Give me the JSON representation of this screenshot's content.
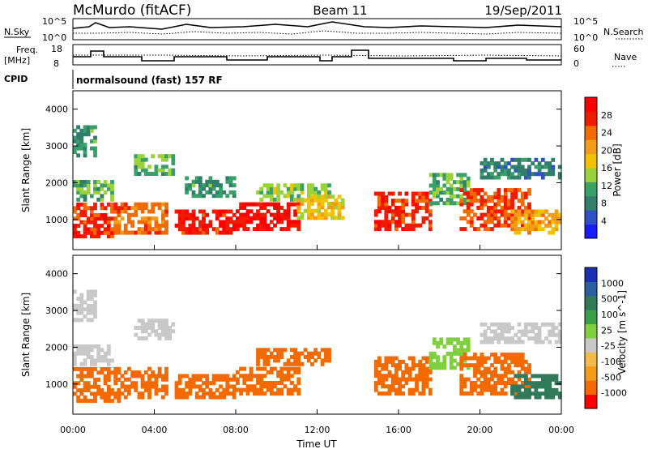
{
  "header": {
    "station": "McMurdo (fitACF)",
    "beam": "Beam 11",
    "date": "19/Sep/2011"
  },
  "top_panels": {
    "nsky_label": "N.Sky",
    "nsky_ticks": [
      "10^5",
      "10^0"
    ],
    "nsearch_label": "N.Search",
    "nsearch_ticks": [
      "10^5",
      "10^0"
    ],
    "freq_label": "Freq.",
    "freq_unit": "[MHz]",
    "freq_ticks": [
      "18",
      "8"
    ],
    "nave_label": "Nave",
    "nave_ticks": [
      "60",
      "0"
    ],
    "cpid_label": "CPID",
    "cpid_text": "normalsound (fast) 157 RF"
  },
  "colors": {
    "power_scale": [
      "#1a1aff",
      "#3050c8",
      "#2f7f6a",
      "#3aa06a",
      "#9ad23a",
      "#f2c200",
      "#f39c1a",
      "#f26a00",
      "#ef1c00",
      "#ff0000"
    ],
    "velocity_scale": [
      "#1a2fb4",
      "#2a5fa0",
      "#307a5a",
      "#3aa04a",
      "#7fcf3f",
      "#c8c8c8",
      "#f5b84a",
      "#f39c1a",
      "#f26a00",
      "#ff0000"
    ]
  },
  "chart_data": [
    {
      "type": "heatmap",
      "name": "power",
      "ylabel": "Slant Range [km]",
      "yticks": [
        "1000",
        "2000",
        "3000",
        "4000"
      ],
      "ylim": [
        180,
        4500
      ],
      "xlim": [
        "00:00",
        "24:00"
      ],
      "colorbar_label": "Power [dB]",
      "colorbar_ticks": [
        "4",
        "8",
        "12",
        "16",
        "20",
        "24",
        "28"
      ],
      "colorbar_range": [
        0,
        32
      ],
      "blobs": [
        {
          "t0": 0.0,
          "t1": 2.2,
          "r0": 500,
          "r1": 1400,
          "v": 27
        },
        {
          "t0": 0.0,
          "t1": 2.0,
          "r0": 1500,
          "r1": 2000,
          "v": 12
        },
        {
          "t0": 0.0,
          "t1": 1.0,
          "r0": 2700,
          "r1": 3500,
          "v": 10
        },
        {
          "t0": 2.0,
          "t1": 4.5,
          "r0": 600,
          "r1": 1400,
          "v": 24
        },
        {
          "t0": 3.0,
          "t1": 5.0,
          "r0": 2200,
          "r1": 2700,
          "v": 12
        },
        {
          "t0": 5.0,
          "t1": 8.0,
          "r0": 600,
          "r1": 1200,
          "v": 28
        },
        {
          "t0": 5.5,
          "t1": 8.0,
          "r0": 1600,
          "r1": 2100,
          "v": 10
        },
        {
          "t0": 8.0,
          "t1": 11.0,
          "r0": 700,
          "r1": 1400,
          "v": 29
        },
        {
          "t0": 9.0,
          "t1": 12.5,
          "r0": 1500,
          "r1": 1900,
          "v": 14
        },
        {
          "t0": 11.0,
          "t1": 13.2,
          "r0": 1000,
          "r1": 1600,
          "v": 18
        },
        {
          "t0": 14.8,
          "t1": 17.5,
          "r0": 700,
          "r1": 1700,
          "v": 27
        },
        {
          "t0": 17.5,
          "t1": 19.5,
          "r0": 1400,
          "r1": 2200,
          "v": 12
        },
        {
          "t0": 19.0,
          "t1": 22.5,
          "r0": 700,
          "r1": 1800,
          "v": 26
        },
        {
          "t0": 20.0,
          "t1": 24.0,
          "r0": 2100,
          "r1": 2600,
          "v": 8
        },
        {
          "t0": 21.5,
          "t1": 24.0,
          "r0": 600,
          "r1": 1200,
          "v": 20
        }
      ]
    },
    {
      "type": "heatmap",
      "name": "velocity",
      "ylabel": "Slant Range [km]",
      "yticks": [
        "1000",
        "2000",
        "3000",
        "4000"
      ],
      "ylim": [
        180,
        4500
      ],
      "xlim": [
        "00:00",
        "24:00"
      ],
      "xticks": [
        "00:00",
        "04:00",
        "08:00",
        "12:00",
        "16:00",
        "20:00",
        "00:00"
      ],
      "xlabel": "Time UT",
      "colorbar_label": "Velocity [m s^-1]",
      "colorbar_ticks": [
        "1000",
        "500",
        "100",
        "25",
        "-25",
        "-100",
        "-500",
        "-1000"
      ],
      "blobs": [
        {
          "t0": 0.0,
          "t1": 2.2,
          "r0": 500,
          "r1": 1400,
          "v": -120
        },
        {
          "t0": 0.0,
          "t1": 2.0,
          "r0": 1500,
          "r1": 2000,
          "v": 20
        },
        {
          "t0": 0.0,
          "t1": 1.0,
          "r0": 2700,
          "r1": 3500,
          "v": 0
        },
        {
          "t0": 2.0,
          "t1": 4.5,
          "r0": 600,
          "r1": 1400,
          "v": -150
        },
        {
          "t0": 3.0,
          "t1": 5.0,
          "r0": 2200,
          "r1": 2700,
          "v": 0
        },
        {
          "t0": 5.0,
          "t1": 8.0,
          "r0": 600,
          "r1": 1200,
          "v": -200
        },
        {
          "t0": 8.0,
          "t1": 11.0,
          "r0": 700,
          "r1": 1400,
          "v": -260
        },
        {
          "t0": 9.0,
          "t1": 12.5,
          "r0": 1500,
          "r1": 1900,
          "v": -110
        },
        {
          "t0": 14.8,
          "t1": 17.5,
          "r0": 700,
          "r1": 1700,
          "v": -220
        },
        {
          "t0": 17.5,
          "t1": 19.5,
          "r0": 1400,
          "r1": 2200,
          "v": 40
        },
        {
          "t0": 19.0,
          "t1": 22.5,
          "r0": 700,
          "r1": 1800,
          "v": -180
        },
        {
          "t0": 20.0,
          "t1": 24.0,
          "r0": 2100,
          "r1": 2600,
          "v": 0
        },
        {
          "t0": 21.5,
          "t1": 24.0,
          "r0": 600,
          "r1": 1200,
          "v": 120
        }
      ]
    }
  ]
}
